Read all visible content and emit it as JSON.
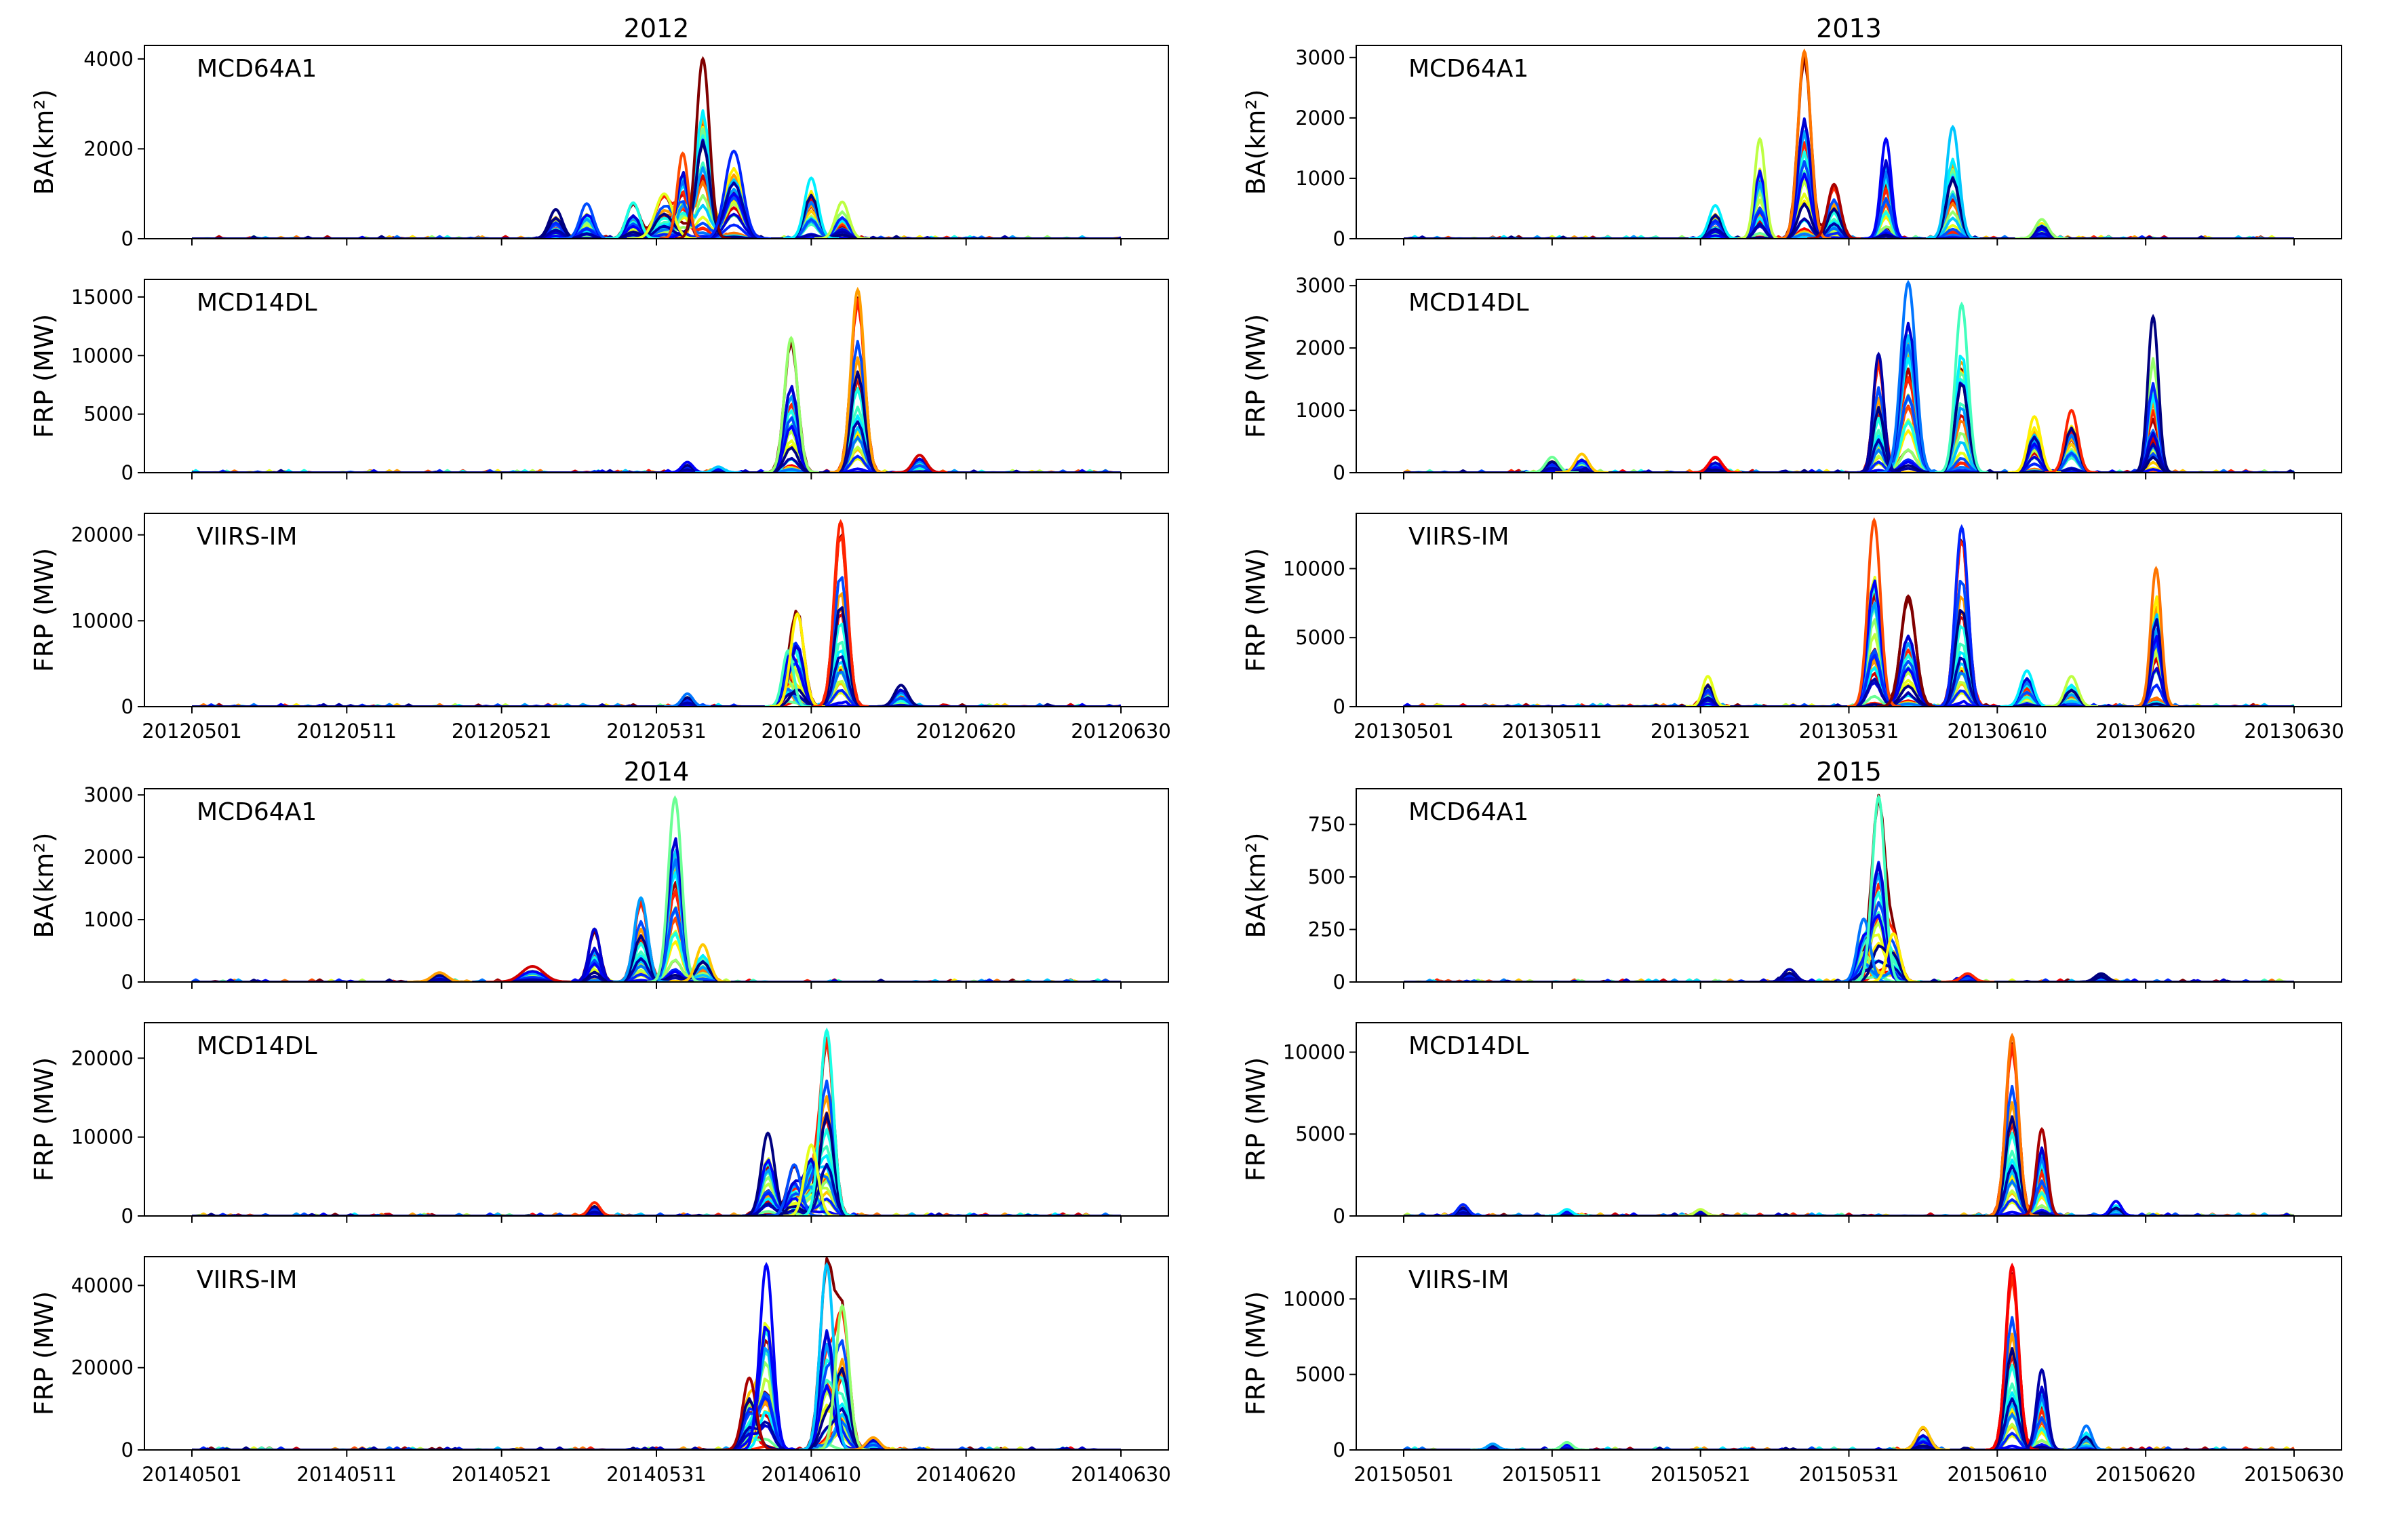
{
  "figure": {
    "x_tick_labels_note": "x tick labels per year are listed in each panel group",
    "colormap": "jet"
  },
  "chart_data": [
    {
      "type": "line",
      "year_title": "2012",
      "panel": "MCD64A1",
      "ylabel": "BA(km²)",
      "x_day_range": [
        0,
        60
      ],
      "ylim": [
        0,
        4300
      ],
      "yticks": [
        0,
        2000,
        4000
      ],
      "peaks": [
        {
          "day": 23.5,
          "value": 650,
          "w": 0.6
        },
        {
          "day": 25.5,
          "value": 780,
          "w": 0.6
        },
        {
          "day": 28.5,
          "value": 800,
          "w": 0.6
        },
        {
          "day": 30.5,
          "value": 1000,
          "w": 0.8
        },
        {
          "day": 31.7,
          "value": 1900,
          "w": 0.5
        },
        {
          "day": 33,
          "value": 4000,
          "w": 0.6
        },
        {
          "day": 35,
          "value": 1950,
          "w": 0.8
        },
        {
          "day": 40,
          "value": 1350,
          "w": 0.6
        },
        {
          "day": 42,
          "value": 820,
          "w": 0.6
        }
      ]
    },
    {
      "type": "line",
      "year_title": "2012",
      "panel": "MCD14DL",
      "ylabel": "FRP (MW)",
      "x_day_range": [
        0,
        60
      ],
      "ylim": [
        0,
        16500
      ],
      "yticks": [
        0,
        5000,
        10000,
        15000
      ],
      "peaks": [
        {
          "day": 32,
          "value": 900,
          "w": 0.5
        },
        {
          "day": 34,
          "value": 500,
          "w": 0.5
        },
        {
          "day": 38.7,
          "value": 11500,
          "w": 0.6
        },
        {
          "day": 43,
          "value": 15600,
          "w": 0.6
        },
        {
          "day": 47,
          "value": 1500,
          "w": 0.6
        }
      ]
    },
    {
      "type": "line",
      "year_title": "2012",
      "panel": "VIIRS-IM",
      "ylabel": "FRP (MW)",
      "x_day_range": [
        0,
        60
      ],
      "ylim": [
        0,
        22500
      ],
      "yticks": [
        0,
        10000,
        20000
      ],
      "x_tick_labels": [
        "20120501",
        "20120511",
        "20120521",
        "20120531",
        "20120610",
        "20120620",
        "20120630"
      ],
      "peaks": [
        {
          "day": 32,
          "value": 1500,
          "w": 0.5
        },
        {
          "day": 38.5,
          "value": 6500,
          "w": 0.5
        },
        {
          "day": 39.1,
          "value": 10800,
          "w": 0.6
        },
        {
          "day": 41.9,
          "value": 21500,
          "w": 0.6
        },
        {
          "day": 45.8,
          "value": 2500,
          "w": 0.6
        }
      ]
    },
    {
      "type": "line",
      "year_title": "2013",
      "panel": "MCD64A1",
      "ylabel": "BA(km²)",
      "x_day_range": [
        0,
        60
      ],
      "ylim": [
        0,
        3200
      ],
      "yticks": [
        0,
        1000,
        2000,
        3000
      ],
      "peaks": [
        {
          "day": 21,
          "value": 550,
          "w": 0.6
        },
        {
          "day": 24,
          "value": 1650,
          "w": 0.5
        },
        {
          "day": 27,
          "value": 3100,
          "w": 0.6
        },
        {
          "day": 29,
          "value": 900,
          "w": 0.6
        },
        {
          "day": 32.5,
          "value": 1650,
          "w": 0.5
        },
        {
          "day": 37,
          "value": 1850,
          "w": 0.6
        },
        {
          "day": 43,
          "value": 320,
          "w": 0.6
        }
      ]
    },
    {
      "type": "line",
      "year_title": "2013",
      "panel": "MCD14DL",
      "ylabel": "FRP (MW)",
      "x_day_range": [
        0,
        60
      ],
      "ylim": [
        0,
        3100
      ],
      "yticks": [
        0,
        1000,
        2000,
        3000
      ],
      "peaks": [
        {
          "day": 10,
          "value": 250,
          "w": 0.6
        },
        {
          "day": 12,
          "value": 300,
          "w": 0.6
        },
        {
          "day": 21,
          "value": 250,
          "w": 0.6
        },
        {
          "day": 32,
          "value": 1900,
          "w": 0.5
        },
        {
          "day": 34,
          "value": 3050,
          "w": 0.7
        },
        {
          "day": 37.6,
          "value": 2700,
          "w": 0.6
        },
        {
          "day": 42.5,
          "value": 900,
          "w": 0.6
        },
        {
          "day": 45,
          "value": 1000,
          "w": 0.6
        },
        {
          "day": 50.5,
          "value": 2500,
          "w": 0.5
        }
      ]
    },
    {
      "type": "line",
      "year_title": "2013",
      "panel": "VIIRS-IM",
      "ylabel": "FRP (MW)",
      "x_day_range": [
        0,
        60
      ],
      "ylim": [
        0,
        14000
      ],
      "yticks": [
        0,
        5000,
        10000
      ],
      "x_tick_labels": [
        "20130501",
        "20130511",
        "20130521",
        "20130531",
        "20130610",
        "20130620",
        "20130630"
      ],
      "peaks": [
        {
          "day": 20.5,
          "value": 2200,
          "w": 0.5
        },
        {
          "day": 31.7,
          "value": 13500,
          "w": 0.6
        },
        {
          "day": 34,
          "value": 8000,
          "w": 0.7
        },
        {
          "day": 37.6,
          "value": 13000,
          "w": 0.6
        },
        {
          "day": 42,
          "value": 2600,
          "w": 0.6
        },
        {
          "day": 45,
          "value": 2200,
          "w": 0.6
        },
        {
          "day": 50.7,
          "value": 10000,
          "w": 0.5
        }
      ]
    },
    {
      "type": "line",
      "year_title": "2014",
      "panel": "MCD64A1",
      "ylabel": "BA(km²)",
      "x_day_range": [
        0,
        60
      ],
      "ylim": [
        0,
        3100
      ],
      "yticks": [
        0,
        1000,
        2000,
        3000
      ],
      "peaks": [
        {
          "day": 16,
          "value": 150,
          "w": 0.7
        },
        {
          "day": 22,
          "value": 250,
          "w": 1.0
        },
        {
          "day": 26,
          "value": 850,
          "w": 0.5
        },
        {
          "day": 29,
          "value": 1350,
          "w": 0.6
        },
        {
          "day": 31.2,
          "value": 2950,
          "w": 0.6
        },
        {
          "day": 33,
          "value": 600,
          "w": 0.6
        }
      ]
    },
    {
      "type": "line",
      "year_title": "2014",
      "panel": "MCD14DL",
      "ylabel": "FRP (MW)",
      "x_day_range": [
        0,
        60
      ],
      "ylim": [
        0,
        24500
      ],
      "yticks": [
        0,
        10000,
        20000
      ],
      "peaks": [
        {
          "day": 26,
          "value": 1700,
          "w": 0.5
        },
        {
          "day": 37.2,
          "value": 10500,
          "w": 0.6
        },
        {
          "day": 38.9,
          "value": 6500,
          "w": 0.6
        },
        {
          "day": 41,
          "value": 23500,
          "w": 0.6
        },
        {
          "day": 40,
          "value": 9000,
          "w": 0.6
        }
      ]
    },
    {
      "type": "line",
      "year_title": "2014",
      "panel": "VIIRS-IM",
      "ylabel": "FRP (MW)",
      "x_day_range": [
        0,
        60
      ],
      "ylim": [
        0,
        47000
      ],
      "yticks": [
        0,
        20000,
        40000
      ],
      "x_tick_labels": [
        "20140501",
        "20140511",
        "20140521",
        "20140531",
        "20140610",
        "20140620",
        "20140630"
      ],
      "peaks": [
        {
          "day": 36,
          "value": 17500,
          "w": 0.6
        },
        {
          "day": 37.1,
          "value": 45000,
          "w": 0.6
        },
        {
          "day": 41,
          "value": 45000,
          "w": 0.6
        },
        {
          "day": 42,
          "value": 35000,
          "w": 0.6
        },
        {
          "day": 44,
          "value": 3000,
          "w": 0.6
        }
      ]
    },
    {
      "type": "line",
      "year_title": "2015",
      "panel": "MCD64A1",
      "ylabel": "BA(km²)",
      "x_day_range": [
        0,
        60
      ],
      "ylim": [
        0,
        920
      ],
      "yticks": [
        0,
        250,
        500,
        750
      ],
      "peaks": [
        {
          "day": 26,
          "value": 60,
          "w": 0.6
        },
        {
          "day": 31,
          "value": 300,
          "w": 0.6
        },
        {
          "day": 32,
          "value": 880,
          "w": 0.6
        },
        {
          "day": 33,
          "value": 230,
          "w": 0.6
        },
        {
          "day": 38,
          "value": 40,
          "w": 0.6
        },
        {
          "day": 47,
          "value": 40,
          "w": 0.6
        }
      ]
    },
    {
      "type": "line",
      "year_title": "2015",
      "panel": "MCD14DL",
      "ylabel": "FRP (MW)",
      "x_day_range": [
        0,
        60
      ],
      "ylim": [
        0,
        11800
      ],
      "yticks": [
        0,
        5000,
        10000
      ],
      "peaks": [
        {
          "day": 4,
          "value": 700,
          "w": 0.5
        },
        {
          "day": 11,
          "value": 400,
          "w": 0.5
        },
        {
          "day": 20,
          "value": 400,
          "w": 0.5
        },
        {
          "day": 41,
          "value": 11000,
          "w": 0.6
        },
        {
          "day": 43,
          "value": 5300,
          "w": 0.5
        },
        {
          "day": 48,
          "value": 900,
          "w": 0.5
        }
      ]
    },
    {
      "type": "line",
      "year_title": "2015",
      "panel": "VIIRS-IM",
      "ylabel": "FRP (MW)",
      "x_day_range": [
        0,
        60
      ],
      "ylim": [
        0,
        12800
      ],
      "yticks": [
        0,
        5000,
        10000
      ],
      "x_tick_labels": [
        "20150501",
        "20150511",
        "20150521",
        "20150531",
        "20150610",
        "20150620",
        "20150630"
      ],
      "peaks": [
        {
          "day": 6,
          "value": 400,
          "w": 0.5
        },
        {
          "day": 11,
          "value": 500,
          "w": 0.5
        },
        {
          "day": 35,
          "value": 1500,
          "w": 0.6
        },
        {
          "day": 41,
          "value": 12200,
          "w": 0.6
        },
        {
          "day": 43,
          "value": 5300,
          "w": 0.5
        },
        {
          "day": 46,
          "value": 1600,
          "w": 0.5
        }
      ]
    }
  ]
}
